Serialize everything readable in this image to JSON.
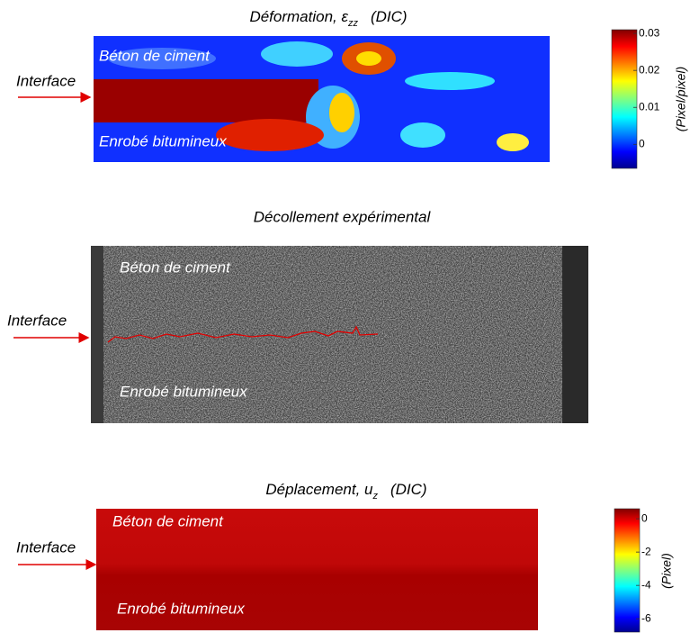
{
  "panels": [
    {
      "title": {
        "text": "Déformation, ε",
        "subscript": "zz",
        "suffix": "(DIC)"
      },
      "interface": "Interface",
      "top_label": "Béton de ciment",
      "bottom_label": "Enrobé bitumineux",
      "colorbar": {
        "label": "(Pixel/pixel)",
        "lim": [
          -0.0065,
          0.031
        ],
        "ticks": [
          0.03,
          0.02,
          0.01,
          0
        ]
      }
    },
    {
      "title": {
        "text": "Décollement expérimental"
      },
      "interface": "Interface",
      "top_label": "Béton de ciment",
      "bottom_label": "Enrobé bitumineux"
    },
    {
      "title": {
        "text": "Déplacement, u",
        "subscript": "z",
        "suffix": "(DIC)"
      },
      "interface": "Interface",
      "top_label": "Béton de ciment",
      "bottom_label": "Enrobé bitumineux",
      "colorbar": {
        "label": "(Pixel)",
        "lim": [
          -6.8,
          0.6
        ],
        "ticks": [
          0,
          -2,
          -4,
          -6
        ]
      }
    }
  ]
}
